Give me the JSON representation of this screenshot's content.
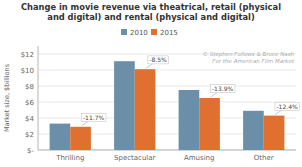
{
  "chart_data": {
    "type": "bar",
    "title": "Change in movie revenue via theatrical, retail (physical\nand digital) and rental (physical and digital)",
    "categories": [
      "Thrilling",
      "Spectacular",
      "Amusing",
      "Other"
    ],
    "series": [
      {
        "name": "2010",
        "color": "#6b8fa8",
        "values": [
          3.3,
          11.1,
          7.5,
          4.9
        ]
      },
      {
        "name": "2015",
        "color": "#e07030",
        "values": [
          2.9,
          10.1,
          6.5,
          4.3
        ]
      }
    ],
    "annotations": [
      "-11.7%",
      "-8.5%",
      "-13.9%",
      "-12.4%"
    ],
    "watermark": [
      "© Stephen Follows & Bruce Nash",
      "For the American Film Market"
    ],
    "y_label": "Market size, $billions",
    "ylim": [
      0,
      13
    ],
    "yticks": [
      {
        "value": 0,
        "label": "$-"
      },
      {
        "value": 2,
        "label": "$2"
      },
      {
        "value": 4,
        "label": "$4"
      },
      {
        "value": 6,
        "label": "$6"
      },
      {
        "value": 8,
        "label": "$8"
      },
      {
        "value": 10,
        "label": "$10"
      },
      {
        "value": 12,
        "label": "$12"
      }
    ],
    "grid": true,
    "legend": "top"
  }
}
